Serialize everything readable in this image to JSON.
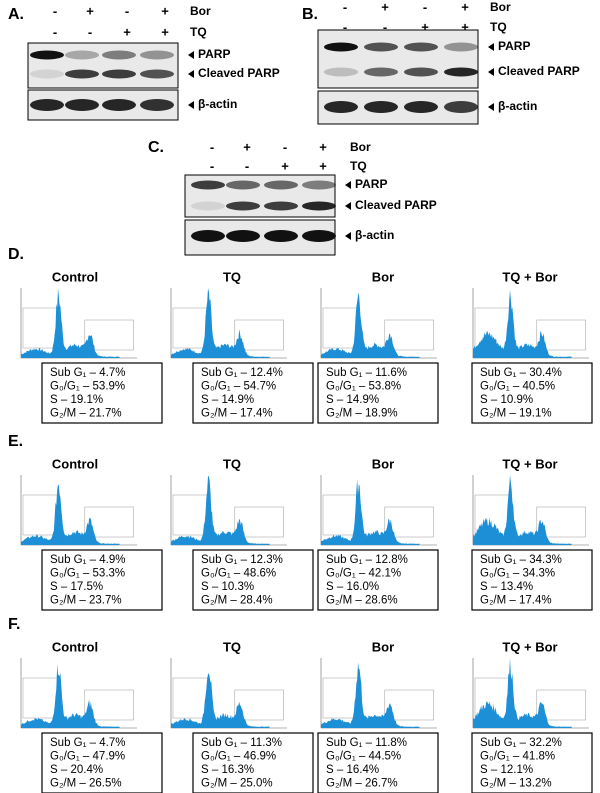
{
  "blots": [
    {
      "label": "A.",
      "treatments": [
        {
          "name": "Bor",
          "signs": [
            "-",
            "+",
            "-",
            "+"
          ]
        },
        {
          "name": "TQ",
          "signs": [
            "-",
            "-",
            "+",
            "+"
          ]
        }
      ],
      "bands": [
        "PARP",
        "Cleaved PARP",
        "β-actin"
      ]
    },
    {
      "label": "B.",
      "treatments": [
        {
          "name": "Bor",
          "signs": [
            "-",
            "+",
            "-",
            "+"
          ]
        },
        {
          "name": "TQ",
          "signs": [
            "-",
            "-",
            "+",
            "+"
          ]
        }
      ],
      "bands": [
        "PARP",
        "Cleaved PARP",
        "β-actin"
      ]
    },
    {
      "label": "C.",
      "treatments": [
        {
          "name": "Bor",
          "signs": [
            "-",
            "+",
            "-",
            "+"
          ]
        },
        {
          "name": "TQ",
          "signs": [
            "-",
            "-",
            "+",
            "+"
          ]
        }
      ],
      "bands": [
        "PARP",
        "Cleaved PARP",
        "β-actin"
      ]
    }
  ],
  "flow": [
    {
      "label": "D.",
      "samples": [
        {
          "title": "Control",
          "stats": [
            "Sub G₁ – 4.7%",
            "G₀/G₁ – 53.9%",
            "S – 19.1%",
            "G₂/M – 21.7%"
          ]
        },
        {
          "title": "TQ",
          "stats": [
            "Sub G₁ – 12.4%",
            "G₀/G₁ – 54.7%",
            "S – 14.9%",
            "G₂/M – 17.4%"
          ]
        },
        {
          "title": "Bor",
          "stats": [
            "Sub G₁ – 11.6%",
            "G₀/G₁ – 53.8%",
            "S – 14.9%",
            "G₂/M – 18.9%"
          ]
        },
        {
          "title": "TQ + Bor",
          "stats": [
            "Sub G₁ – 30.4%",
            "G₀/G₁ – 40.5%",
            "S – 10.9%",
            "G₂/M – 19.1%"
          ]
        }
      ]
    },
    {
      "label": "E.",
      "samples": [
        {
          "title": "Control",
          "stats": [
            "Sub G₁ – 4.9%",
            "G₀/G₁ – 53.3%",
            "S – 17.5%",
            "G₂/M – 23.7%"
          ]
        },
        {
          "title": "TQ",
          "stats": [
            "Sub G₁ – 12.3%",
            "G₀/G₁ – 48.6%",
            "S – 10.3%",
            "G₂/M – 28.4%"
          ]
        },
        {
          "title": "Bor",
          "stats": [
            "Sub G₁ – 12.8%",
            "G₀/G₁ – 42.1%",
            "S – 16.0%",
            "G₂/M – 28.6%"
          ]
        },
        {
          "title": "TQ + Bor",
          "stats": [
            "Sub G₁ – 34.3%",
            "G₀/G₁ – 34.3%",
            "S – 13.4%",
            "G₂/M – 17.4%"
          ]
        }
      ]
    },
    {
      "label": "F.",
      "samples": [
        {
          "title": "Control",
          "stats": [
            "Sub G₁ – 4.7%",
            "G₀/G₁ – 47.9%",
            "S – 20.4%",
            "G₂/M – 26.5%"
          ]
        },
        {
          "title": "TQ",
          "stats": [
            "Sub G₁ – 11.3%",
            "G₀/G₁ – 46.9%",
            "S – 16.3%",
            "G₂/M – 25.0%"
          ]
        },
        {
          "title": "Bor",
          "stats": [
            "Sub G₁ – 11.8%",
            "G₀/G₁ – 44.5%",
            "S – 16.4%",
            "G₂/M – 26.7%"
          ]
        },
        {
          "title": "TQ + Bor",
          "stats": [
            "Sub G₁ – 32.2%",
            "G₀/G₁ – 41.8%",
            "S – 12.1%",
            "G₂/M – 13.2%"
          ]
        }
      ]
    }
  ]
}
